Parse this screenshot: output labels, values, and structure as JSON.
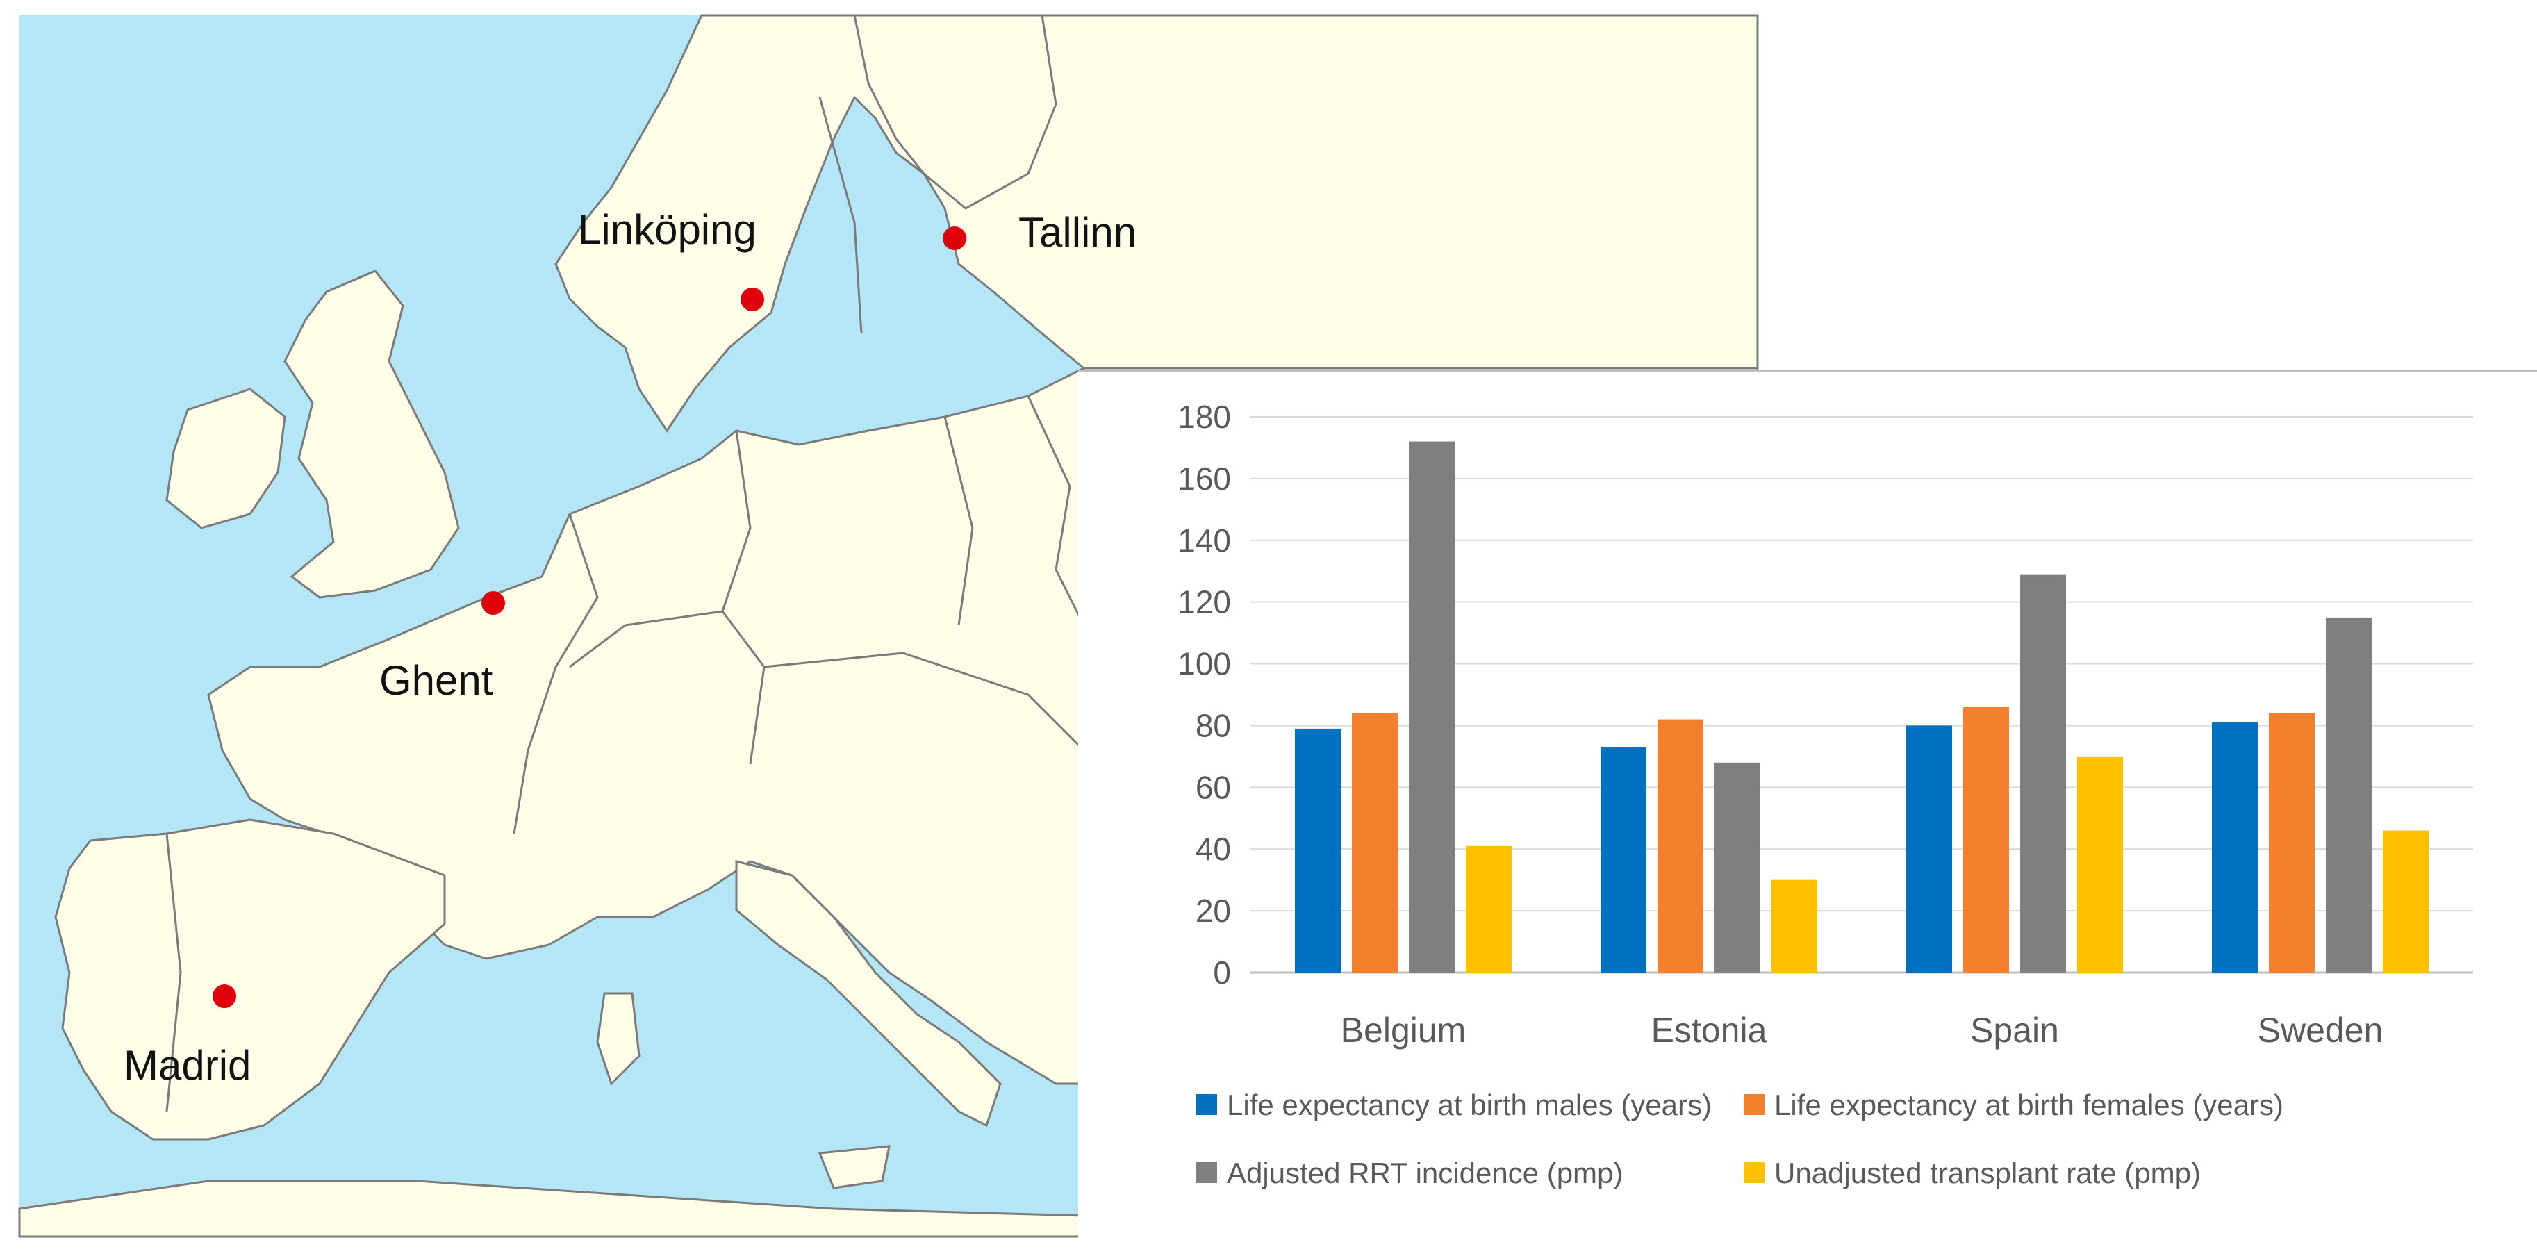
{
  "map": {
    "cities": [
      {
        "name": "Linköping"
      },
      {
        "name": "Tallinn"
      },
      {
        "name": "Ghent"
      },
      {
        "name": "Madrid"
      }
    ],
    "colors": {
      "sea": "#b4e6f6",
      "land": "#fefde8",
      "border": "#7a7a7a",
      "city_marker": "#e0000b"
    }
  },
  "chart_data": {
    "type": "bar",
    "categories": [
      "Belgium",
      "Estonia",
      "Spain",
      "Sweden"
    ],
    "series": [
      {
        "name": "Life expectancy at birth males (years)",
        "color": "#0070c0",
        "values": [
          79,
          73,
          80,
          81
        ]
      },
      {
        "name": "Life expectancy at birth females (years)",
        "color": "#f47f2d",
        "values": [
          84,
          82,
          86,
          84
        ]
      },
      {
        "name": "Adjusted RRT incidence (pmp)",
        "color": "#7f7f7f",
        "values": [
          172,
          68,
          129,
          115
        ]
      },
      {
        "name": "Unadjusted transplant rate (pmp)",
        "color": "#ffc000",
        "values": [
          41,
          30,
          70,
          46
        ]
      }
    ],
    "yticks": [
      "0",
      "20",
      "40",
      "60",
      "80",
      "100",
      "120",
      "140",
      "160",
      "180"
    ],
    "ylim": [
      0,
      180
    ],
    "grid": true,
    "legend_position": "bottom"
  }
}
